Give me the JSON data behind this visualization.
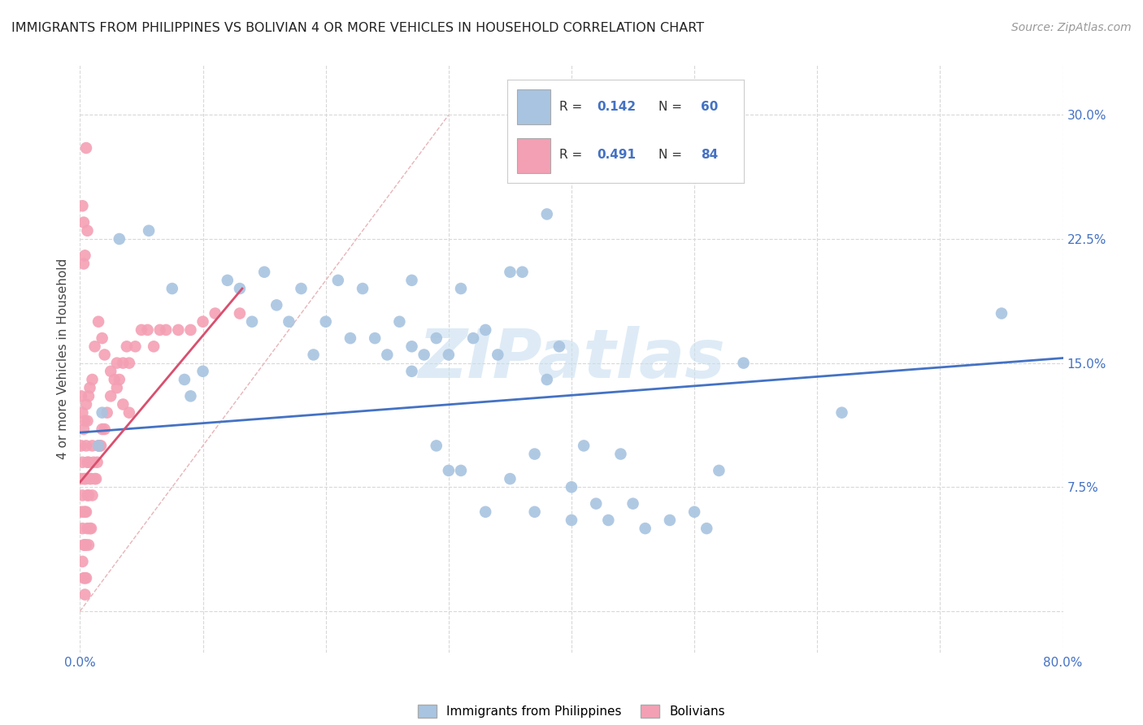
{
  "title": "IMMIGRANTS FROM PHILIPPINES VS BOLIVIAN 4 OR MORE VEHICLES IN HOUSEHOLD CORRELATION CHART",
  "source": "Source: ZipAtlas.com",
  "ylabel": "4 or more Vehicles in Household",
  "xlim": [
    0.0,
    0.8
  ],
  "ylim_lo": -0.025,
  "ylim_hi": 0.33,
  "yticks": [
    0.0,
    0.075,
    0.15,
    0.225,
    0.3
  ],
  "yticklabels": [
    "",
    "7.5%",
    "15.0%",
    "22.5%",
    "30.0%"
  ],
  "xtick_positions": [
    0.0,
    0.1,
    0.2,
    0.3,
    0.4,
    0.5,
    0.6,
    0.7,
    0.8
  ],
  "xticklabels": [
    "0.0%",
    "",
    "",
    "",
    "",
    "",
    "",
    "",
    "80.0%"
  ],
  "R_blue": 0.142,
  "N_blue": 60,
  "R_pink": 0.491,
  "N_pink": 84,
  "blue_color": "#a8c4e0",
  "pink_color": "#f4a0b4",
  "blue_line_color": "#4472c4",
  "pink_line_color": "#d94f6e",
  "diag_color": "#e8b4b8",
  "tick_label_color": "#4472c4",
  "ylabel_color": "#444444",
  "watermark_color": "#c8dff0",
  "grid_color": "#d8d8d8",
  "blue_x": [
    0.018,
    0.056,
    0.032,
    0.075,
    0.085,
    0.09,
    0.1,
    0.12,
    0.13,
    0.14,
    0.15,
    0.16,
    0.17,
    0.18,
    0.19,
    0.2,
    0.21,
    0.22,
    0.23,
    0.24,
    0.25,
    0.26,
    0.27,
    0.27,
    0.29,
    0.3,
    0.31,
    0.32,
    0.33,
    0.34,
    0.35,
    0.36,
    0.37,
    0.38,
    0.39,
    0.4,
    0.41,
    0.42,
    0.44,
    0.45,
    0.27,
    0.28,
    0.29,
    0.3,
    0.31,
    0.33,
    0.35,
    0.37,
    0.4,
    0.43,
    0.46,
    0.48,
    0.5,
    0.51,
    0.52,
    0.54,
    0.38,
    0.62,
    0.75,
    0.015
  ],
  "blue_y": [
    0.12,
    0.23,
    0.225,
    0.195,
    0.14,
    0.13,
    0.145,
    0.2,
    0.195,
    0.175,
    0.205,
    0.185,
    0.175,
    0.195,
    0.155,
    0.175,
    0.2,
    0.165,
    0.195,
    0.165,
    0.155,
    0.175,
    0.2,
    0.16,
    0.165,
    0.155,
    0.195,
    0.165,
    0.17,
    0.155,
    0.205,
    0.205,
    0.095,
    0.14,
    0.16,
    0.075,
    0.1,
    0.065,
    0.095,
    0.065,
    0.145,
    0.155,
    0.1,
    0.085,
    0.085,
    0.06,
    0.08,
    0.06,
    0.055,
    0.055,
    0.05,
    0.055,
    0.06,
    0.05,
    0.085,
    0.15,
    0.24,
    0.12,
    0.18,
    0.1
  ],
  "pink_x": [
    0.001,
    0.001,
    0.001,
    0.002,
    0.002,
    0.002,
    0.002,
    0.003,
    0.003,
    0.003,
    0.003,
    0.004,
    0.004,
    0.004,
    0.004,
    0.005,
    0.005,
    0.005,
    0.005,
    0.005,
    0.006,
    0.006,
    0.006,
    0.007,
    0.007,
    0.007,
    0.008,
    0.008,
    0.009,
    0.009,
    0.01,
    0.01,
    0.011,
    0.012,
    0.013,
    0.014,
    0.015,
    0.016,
    0.017,
    0.018,
    0.02,
    0.022,
    0.025,
    0.028,
    0.03,
    0.032,
    0.035,
    0.038,
    0.04,
    0.045,
    0.05,
    0.055,
    0.06,
    0.065,
    0.07,
    0.08,
    0.09,
    0.1,
    0.11,
    0.13,
    0.001,
    0.002,
    0.003,
    0.004,
    0.005,
    0.006,
    0.007,
    0.008,
    0.01,
    0.012,
    0.015,
    0.018,
    0.02,
    0.025,
    0.03,
    0.035,
    0.04,
    0.002,
    0.003,
    0.004,
    0.005,
    0.006,
    0.003,
    0.004
  ],
  "pink_y": [
    0.1,
    0.08,
    0.06,
    0.09,
    0.07,
    0.05,
    0.03,
    0.08,
    0.06,
    0.04,
    0.02,
    0.08,
    0.06,
    0.04,
    0.02,
    0.1,
    0.08,
    0.06,
    0.04,
    0.02,
    0.09,
    0.07,
    0.05,
    0.09,
    0.07,
    0.04,
    0.08,
    0.05,
    0.08,
    0.05,
    0.1,
    0.07,
    0.09,
    0.08,
    0.08,
    0.09,
    0.1,
    0.1,
    0.1,
    0.11,
    0.11,
    0.12,
    0.13,
    0.14,
    0.15,
    0.14,
    0.15,
    0.16,
    0.15,
    0.16,
    0.17,
    0.17,
    0.16,
    0.17,
    0.17,
    0.17,
    0.17,
    0.175,
    0.18,
    0.18,
    0.13,
    0.12,
    0.11,
    0.115,
    0.125,
    0.115,
    0.13,
    0.135,
    0.14,
    0.16,
    0.175,
    0.165,
    0.155,
    0.145,
    0.135,
    0.125,
    0.12,
    0.245,
    0.235,
    0.215,
    0.28,
    0.23,
    0.21,
    0.01
  ],
  "blue_line": [
    0.0,
    0.8,
    0.108,
    0.153
  ],
  "pink_line": [
    0.0,
    0.132,
    0.078,
    0.195
  ],
  "diag_line": [
    0.0,
    0.3,
    0.0,
    0.3
  ]
}
